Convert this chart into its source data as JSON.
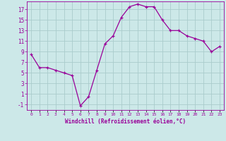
{
  "x": [
    0,
    1,
    2,
    3,
    4,
    5,
    6,
    7,
    8,
    9,
    10,
    11,
    12,
    13,
    14,
    15,
    16,
    17,
    18,
    19,
    20,
    21,
    22,
    23
  ],
  "y": [
    8.5,
    6.0,
    6.0,
    5.5,
    5.0,
    4.5,
    -1.2,
    0.5,
    5.5,
    10.5,
    12.0,
    15.5,
    17.5,
    18.0,
    17.5,
    17.5,
    15.0,
    13.0,
    13.0,
    12.0,
    11.5,
    11.0,
    9.0,
    10.0
  ],
  "line_color": "#990099",
  "marker_color": "#990099",
  "bg_color": "#cce8e8",
  "grid_color": "#aacccc",
  "xlabel": "Windchill (Refroidissement éolien,°C)",
  "xlabel_color": "#990099",
  "yticks": [
    -1,
    1,
    3,
    5,
    7,
    9,
    11,
    13,
    15,
    17
  ],
  "xtick_labels": [
    "0",
    "1",
    "2",
    "3",
    "4",
    "5",
    "6",
    "7",
    "8",
    "9",
    "10",
    "11",
    "12",
    "13",
    "14",
    "15",
    "16",
    "17",
    "18",
    "19",
    "20",
    "21",
    "22",
    "23"
  ],
  "ylim": [
    -2.0,
    18.5
  ],
  "xlim": [
    -0.5,
    23.5
  ],
  "font_color": "#990099"
}
